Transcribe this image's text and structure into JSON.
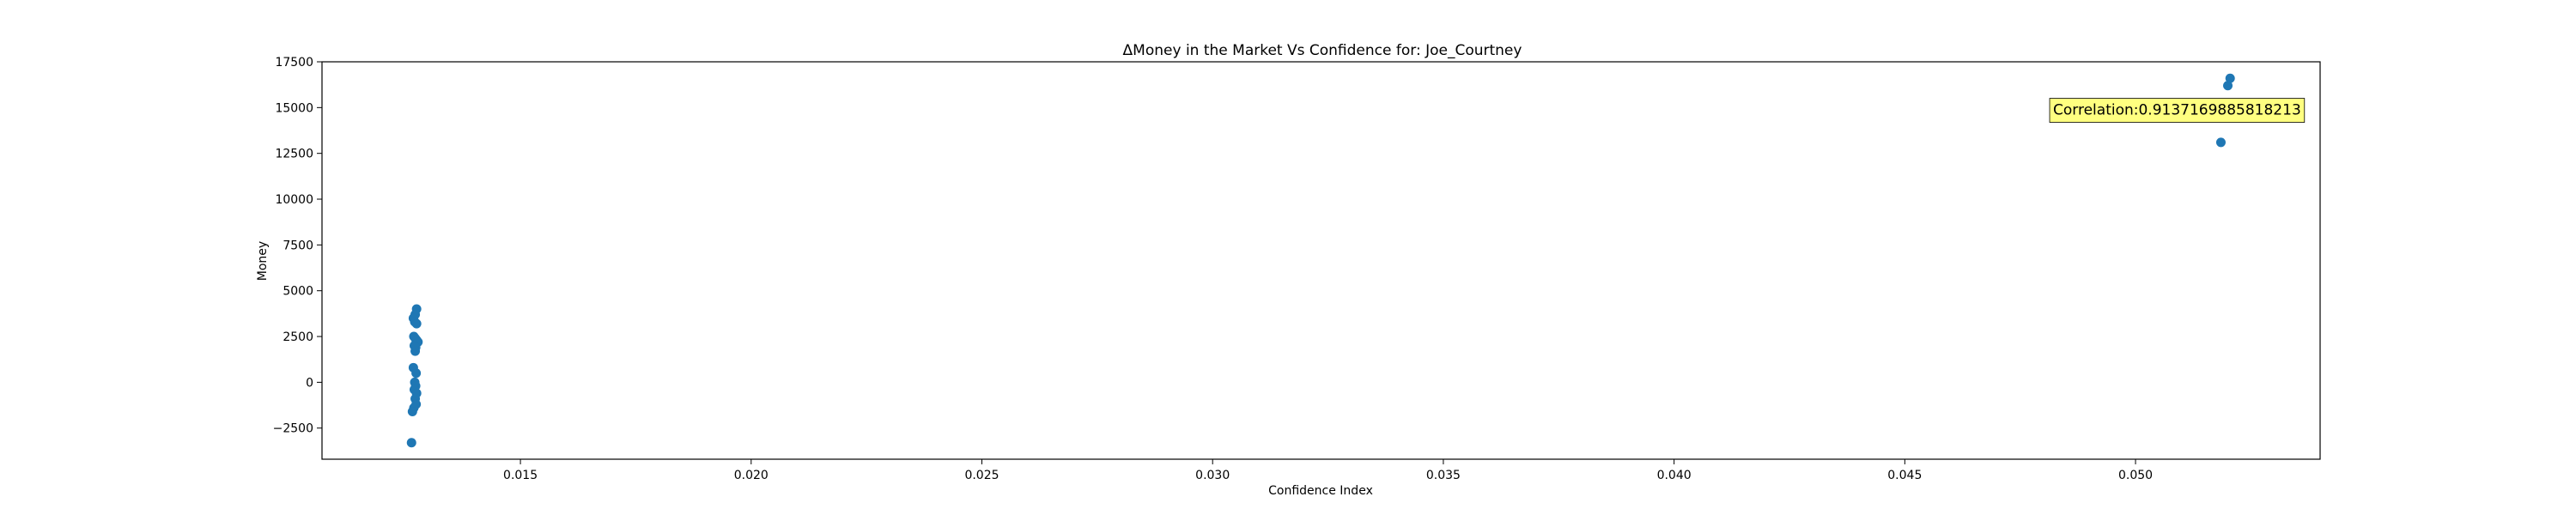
{
  "chart_data": {
    "type": "scatter",
    "title": "ΔMoney in the Market Vs Confidence for: Joe_Courtney",
    "xlabel": "Confidence Index",
    "ylabel": "Money",
    "xlim": [
      0.0107,
      0.054
    ],
    "ylim": [
      -4200,
      17500
    ],
    "xticks": [
      0.015,
      0.02,
      0.025,
      0.03,
      0.035,
      0.04,
      0.045,
      0.05
    ],
    "xtick_labels": [
      "0.015",
      "0.020",
      "0.025",
      "0.030",
      "0.035",
      "0.040",
      "0.045",
      "0.050"
    ],
    "yticks": [
      -2500,
      0,
      2500,
      5000,
      7500,
      10000,
      12500,
      15000,
      17500
    ],
    "ytick_labels": [
      "−2500",
      "0",
      "2500",
      "5000",
      "7500",
      "10000",
      "12500",
      "15000",
      "17500"
    ],
    "grid": false,
    "marker_color": "#1f77b4",
    "annotation": {
      "text": "Correlation:0.9137169885818213",
      "x": 0.0509,
      "y": 14850,
      "background": "#ffff80"
    },
    "points": [
      {
        "x": 0.01275,
        "y": 4000
      },
      {
        "x": 0.01272,
        "y": 3700
      },
      {
        "x": 0.01268,
        "y": 3500
      },
      {
        "x": 0.01271,
        "y": 3300
      },
      {
        "x": 0.01275,
        "y": 3200
      },
      {
        "x": 0.01269,
        "y": 2500
      },
      {
        "x": 0.01272,
        "y": 2400
      },
      {
        "x": 0.01275,
        "y": 2300
      },
      {
        "x": 0.01278,
        "y": 2200
      },
      {
        "x": 0.0127,
        "y": 2000
      },
      {
        "x": 0.01273,
        "y": 1900
      },
      {
        "x": 0.01272,
        "y": 1700
      },
      {
        "x": 0.01268,
        "y": 800
      },
      {
        "x": 0.01274,
        "y": 500
      },
      {
        "x": 0.01271,
        "y": 0
      },
      {
        "x": 0.01273,
        "y": -200
      },
      {
        "x": 0.0127,
        "y": -400
      },
      {
        "x": 0.01275,
        "y": -600
      },
      {
        "x": 0.01272,
        "y": -900
      },
      {
        "x": 0.01274,
        "y": -1200
      },
      {
        "x": 0.01269,
        "y": -1400
      },
      {
        "x": 0.01266,
        "y": -1600
      },
      {
        "x": 0.01264,
        "y": -3300
      },
      {
        "x": 0.05185,
        "y": 13100
      },
      {
        "x": 0.052,
        "y": 16200
      },
      {
        "x": 0.05205,
        "y": 16600
      }
    ]
  }
}
